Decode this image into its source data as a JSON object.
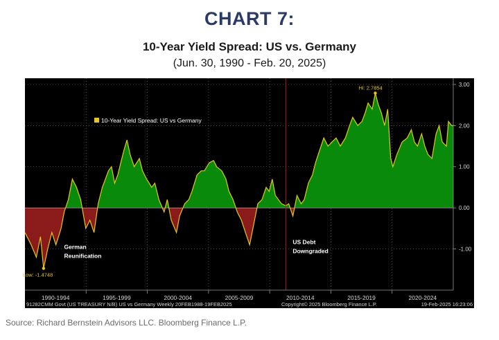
{
  "header": {
    "chart_label": "CHART 7:",
    "title": "10-Year Yield Spread: US vs. Germany",
    "date_range": "(Jun. 30, 1990 - Feb. 20, 2025)"
  },
  "footer": {
    "source": "Source: Richard Bernstein Advisors LLC. Bloomberg Finance L.P."
  },
  "colors": {
    "positive_fill": "#0a8a0a",
    "negative_fill": "#8b1a1a",
    "line": "#e8c520",
    "marker": "#e8c520",
    "event_line": "#b01a1a",
    "grid": "#777777",
    "text": "#ffffff",
    "axis_text": "#d8d8d8",
    "background": "#000000"
  },
  "chart_data": {
    "type": "area",
    "title": "10-Year Yield Spread: US vs. Germany",
    "legend": {
      "entry": "10-Year Yield Spread: US vs Germany",
      "placement": "top-left"
    },
    "x_tick_labels": [
      "1990-1994",
      "1995-1999",
      "2000-2004",
      "2005-2009",
      "2010-2014",
      "2015-2019",
      "2020-2024"
    ],
    "y_ticks": [
      3.0,
      2.0,
      1.0,
      0.0,
      -1.0
    ],
    "y_tick_labels": [
      "3.00",
      "2.00",
      "1.00",
      "0.00",
      "-1.00"
    ],
    "ylim": [
      -2.0,
      3.15
    ],
    "xlim": [
      "1990-06-30",
      "2025-02-20"
    ],
    "grid": true,
    "last_value": 2.0,
    "series": [
      {
        "name": "10-Year Yield Spread: US vs Germany",
        "x": [
          "1990-06-30",
          "1991-01-01",
          "1991-06-01",
          "1991-10-01",
          "1992-01-01",
          "1992-05-01",
          "1992-09-01",
          "1993-01-01",
          "1993-06-01",
          "1993-09-01",
          "1994-01-01",
          "1994-05-01",
          "1994-09-01",
          "1995-01-01",
          "1995-06-01",
          "1995-10-01",
          "1996-02-01",
          "1996-06-01",
          "1996-10-01",
          "1997-01-01",
          "1997-04-01",
          "1997-07-01",
          "1997-10-01",
          "1998-01-01",
          "1998-04-01",
          "1998-07-01",
          "1998-10-01",
          "1999-01-01",
          "1999-05-01",
          "1999-10-01",
          "2000-01-01",
          "2000-05-01",
          "2000-10-01",
          "2001-01-01",
          "2001-05-01",
          "2001-10-01",
          "2002-01-01",
          "2002-05-01",
          "2002-10-01",
          "2003-01-01",
          "2003-06-01",
          "2003-10-01",
          "2004-01-01",
          "2004-06-01",
          "2004-10-01",
          "2005-01-01",
          "2005-06-01",
          "2005-10-01",
          "2006-01-01",
          "2006-06-01",
          "2006-10-01",
          "2007-01-01",
          "2007-05-01",
          "2007-09-01",
          "2008-01-01",
          "2008-05-01",
          "2008-09-01",
          "2009-01-01",
          "2009-05-01",
          "2009-09-01",
          "2010-01-01",
          "2010-04-01",
          "2010-07-01",
          "2010-10-01",
          "2011-01-01",
          "2011-04-01",
          "2011-08-05",
          "2011-11-01",
          "2012-03-01",
          "2012-07-01",
          "2012-11-01",
          "2013-02-01",
          "2013-06-01",
          "2013-10-01",
          "2014-01-01",
          "2014-05-01",
          "2014-09-01",
          "2015-01-01",
          "2015-05-01",
          "2015-09-01",
          "2016-01-01",
          "2016-06-01",
          "2016-10-01",
          "2017-01-01",
          "2017-06-01",
          "2017-10-01",
          "2018-01-01",
          "2018-04-01",
          "2018-08-01",
          "2018-11-01",
          "2019-02-01",
          "2019-05-01",
          "2019-08-01",
          "2019-11-01",
          "2020-02-01",
          "2020-04-01",
          "2020-08-01",
          "2021-01-01",
          "2021-06-01",
          "2021-10-01",
          "2022-01-01",
          "2022-04-01",
          "2022-08-01",
          "2022-11-01",
          "2023-02-01",
          "2023-06-01",
          "2023-10-01",
          "2024-01-01",
          "2024-04-01",
          "2024-08-01",
          "2024-10-01",
          "2025-01-01",
          "2025-02-20"
        ],
        "values": [
          -0.6,
          -0.9,
          -1.2,
          -0.7,
          -1.47,
          -1.0,
          -0.6,
          -0.9,
          -0.5,
          -0.1,
          0.2,
          0.7,
          0.5,
          0.2,
          -0.5,
          -0.3,
          -0.6,
          0.1,
          0.5,
          0.7,
          0.9,
          1.0,
          0.6,
          0.8,
          1.1,
          1.4,
          1.65,
          1.3,
          1.0,
          1.2,
          0.9,
          0.7,
          0.5,
          0.6,
          0.2,
          -0.1,
          0.2,
          -0.3,
          -0.6,
          -0.2,
          0.1,
          0.2,
          0.4,
          0.8,
          0.9,
          0.9,
          1.1,
          1.15,
          1.0,
          0.9,
          0.7,
          0.4,
          0.2,
          -0.1,
          -0.3,
          -0.6,
          -0.9,
          -0.4,
          0.1,
          0.2,
          0.5,
          0.4,
          0.7,
          0.3,
          0.2,
          0.1,
          0.05,
          0.1,
          -0.2,
          0.3,
          0.1,
          0.2,
          0.6,
          0.8,
          1.1,
          1.4,
          1.7,
          1.5,
          1.6,
          1.7,
          1.5,
          1.7,
          2.0,
          2.2,
          2.0,
          2.1,
          2.3,
          2.55,
          2.4,
          2.79,
          2.5,
          2.3,
          2.0,
          2.4,
          1.2,
          1.0,
          1.3,
          1.6,
          1.7,
          1.9,
          1.6,
          1.5,
          1.8,
          1.5,
          1.3,
          1.2,
          1.8,
          2.0,
          1.6,
          1.5,
          2.1,
          2.0,
          2.0
        ]
      }
    ],
    "annotations": [
      {
        "text": "Hi: 2.7854",
        "x": "2018-11-01",
        "y": 2.79
      },
      {
        "text": "Low: -1.4748",
        "x": "1992-01-01",
        "y": -1.47
      },
      {
        "text": "German",
        "x": "1994-01-01",
        "y": -1.0
      },
      {
        "text": "Reunification",
        "x": "1994-01-01",
        "y": -1.22
      },
      {
        "text": "US Debt",
        "x": "2011-08-05",
        "y": -0.88
      },
      {
        "text": "Downgraded",
        "x": "2011-08-05",
        "y": -1.1
      }
    ],
    "event_line": {
      "x": "2011-08-05"
    },
    "footer_left": "91282CMM Govt (US TREASURY N/B) US vs Germany  Weekly 20FEB1988-19FEB2025",
    "footer_center": "Copyright© 2025 Bloomberg Finance L.P.",
    "footer_right": "19-Feb-2025 16:23:06"
  }
}
